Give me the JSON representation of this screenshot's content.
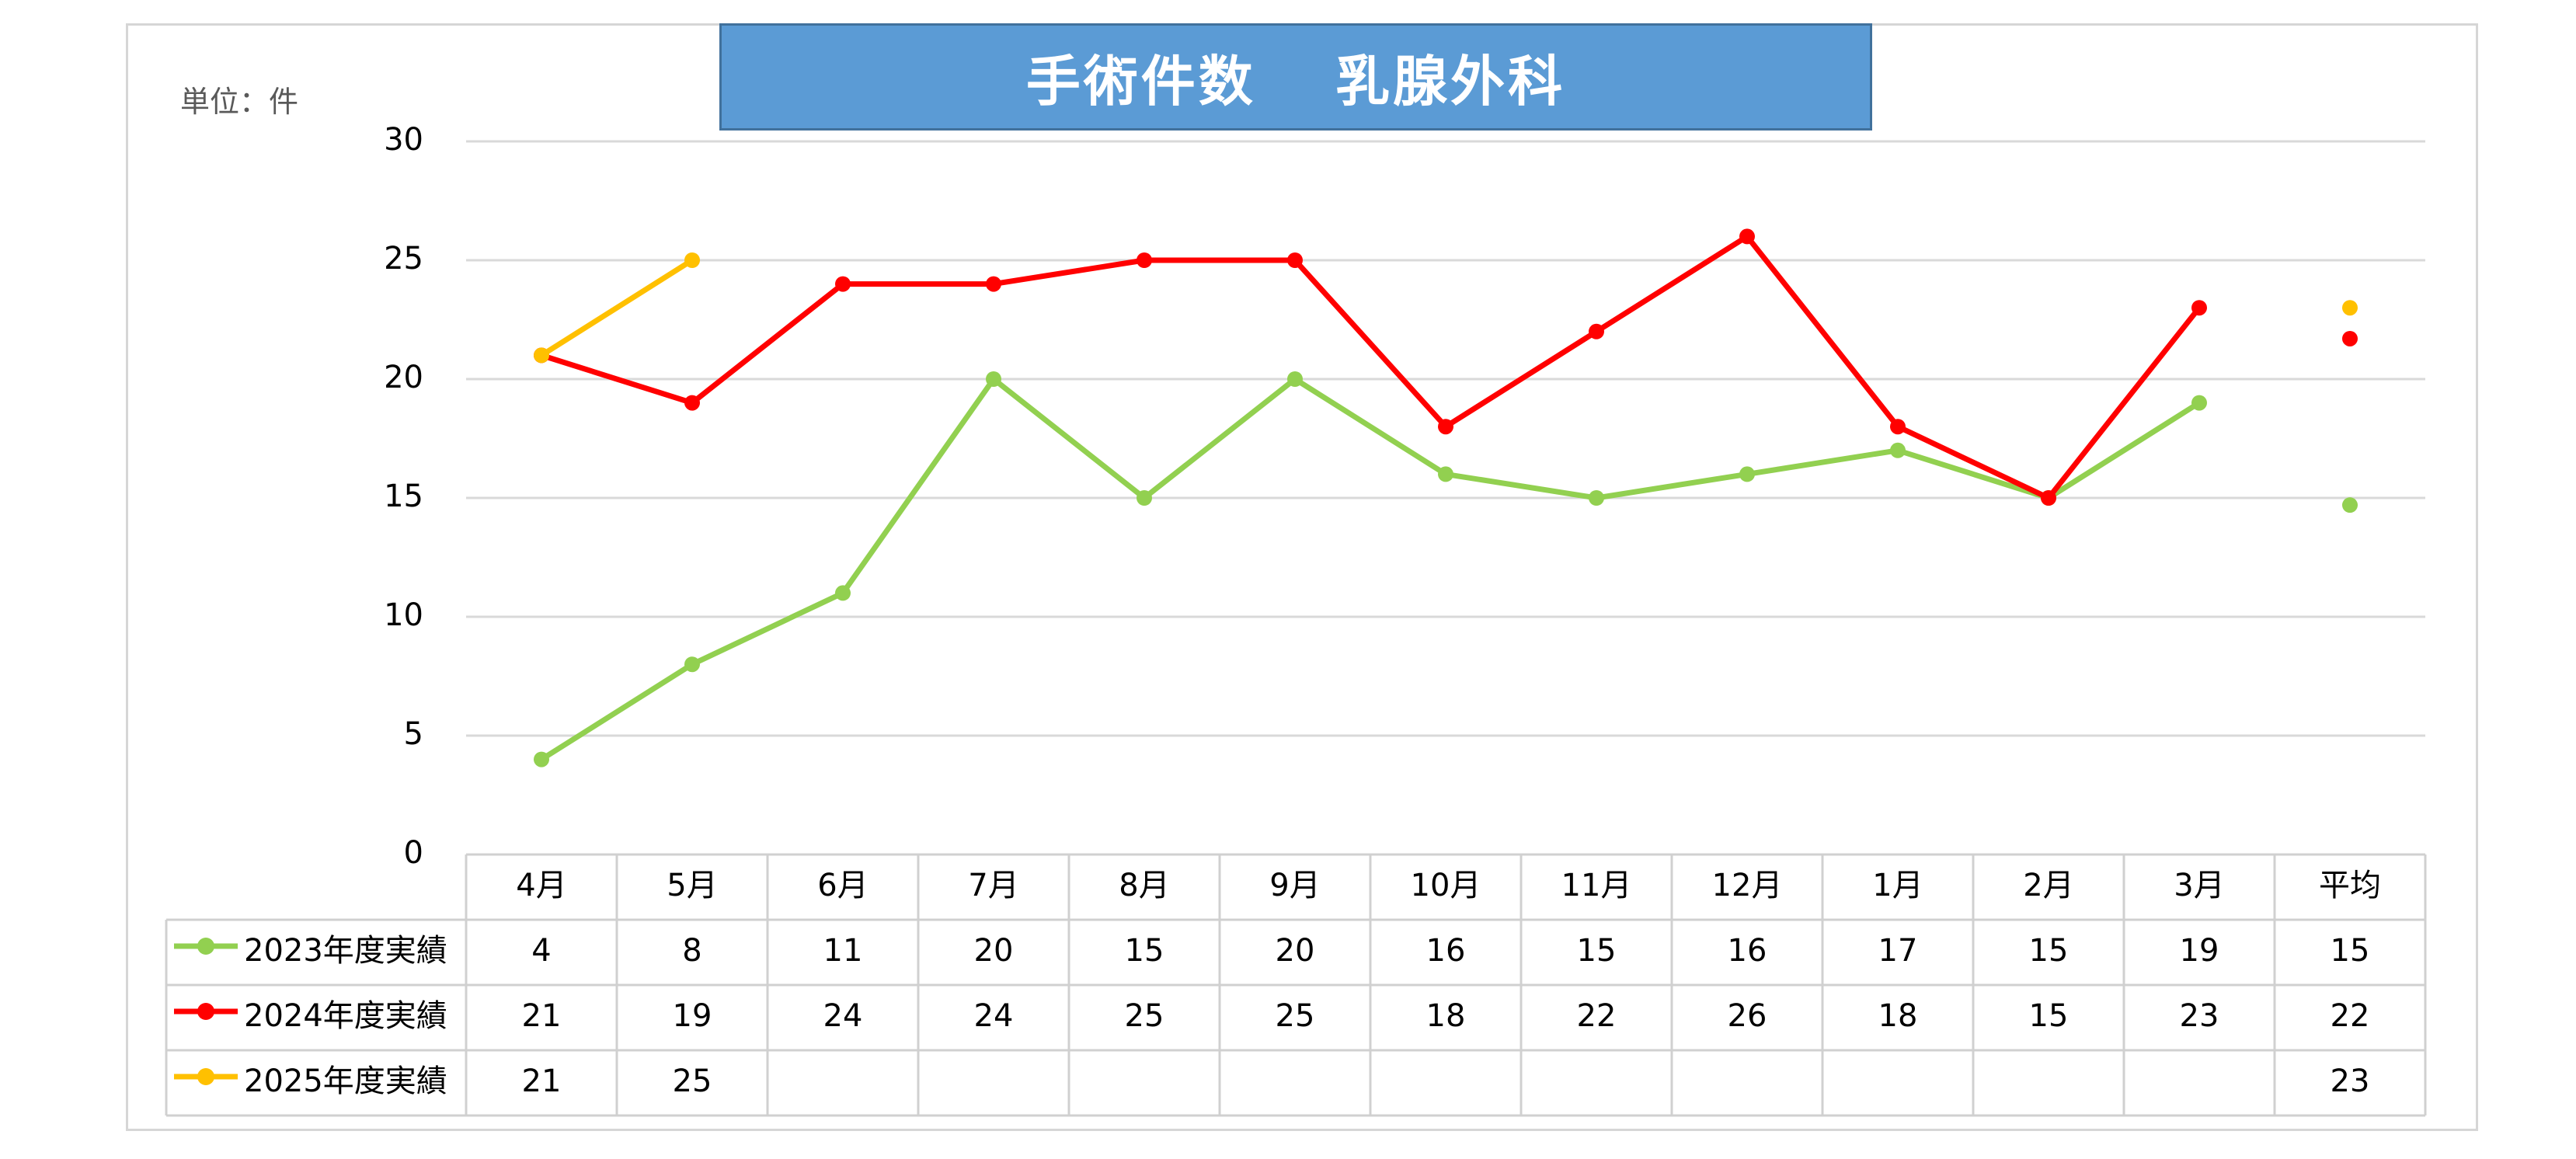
{
  "unit_label": "単位：件",
  "chart_data": {
    "type": "line",
    "title": "手術件数　 乳腺外科",
    "xlabel": "",
    "ylabel": "",
    "ylim": [
      0,
      30
    ],
    "yticks": [
      0,
      5,
      10,
      15,
      20,
      25,
      30
    ],
    "grid": true,
    "legend_placement": "table-left",
    "categories": [
      "4月",
      "5月",
      "6月",
      "7月",
      "8月",
      "9月",
      "10月",
      "11月",
      "12月",
      "1月",
      "2月",
      "3月"
    ],
    "average_label": "平均",
    "series": [
      {
        "name": "2023年度実績",
        "color": "#92d050",
        "values": [
          4,
          8,
          11,
          20,
          15,
          20,
          16,
          15,
          16,
          17,
          15,
          19
        ],
        "average": 14.7,
        "average_display": "15",
        "table_values": [
          "4",
          "8",
          "11",
          "20",
          "15",
          "20",
          "16",
          "15",
          "16",
          "17",
          "15",
          "19"
        ]
      },
      {
        "name": "2024年度実績",
        "color": "#ff0000",
        "values": [
          21,
          19,
          24,
          24,
          25,
          25,
          18,
          22,
          26,
          18,
          15,
          23
        ],
        "average": 21.7,
        "average_display": "22",
        "table_values": [
          "21",
          "19",
          "24",
          "24",
          "25",
          "25",
          "18",
          "22",
          "26",
          "18",
          "15",
          "23"
        ]
      },
      {
        "name": "2025年度実績",
        "color": "#ffc000",
        "values": [
          21,
          25,
          null,
          null,
          null,
          null,
          null,
          null,
          null,
          null,
          null,
          null
        ],
        "average": 23,
        "average_display": "23",
        "table_values": [
          "21",
          "25",
          "",
          "",
          "",
          "",
          "",
          "",
          "",
          "",
          "",
          ""
        ]
      }
    ]
  }
}
